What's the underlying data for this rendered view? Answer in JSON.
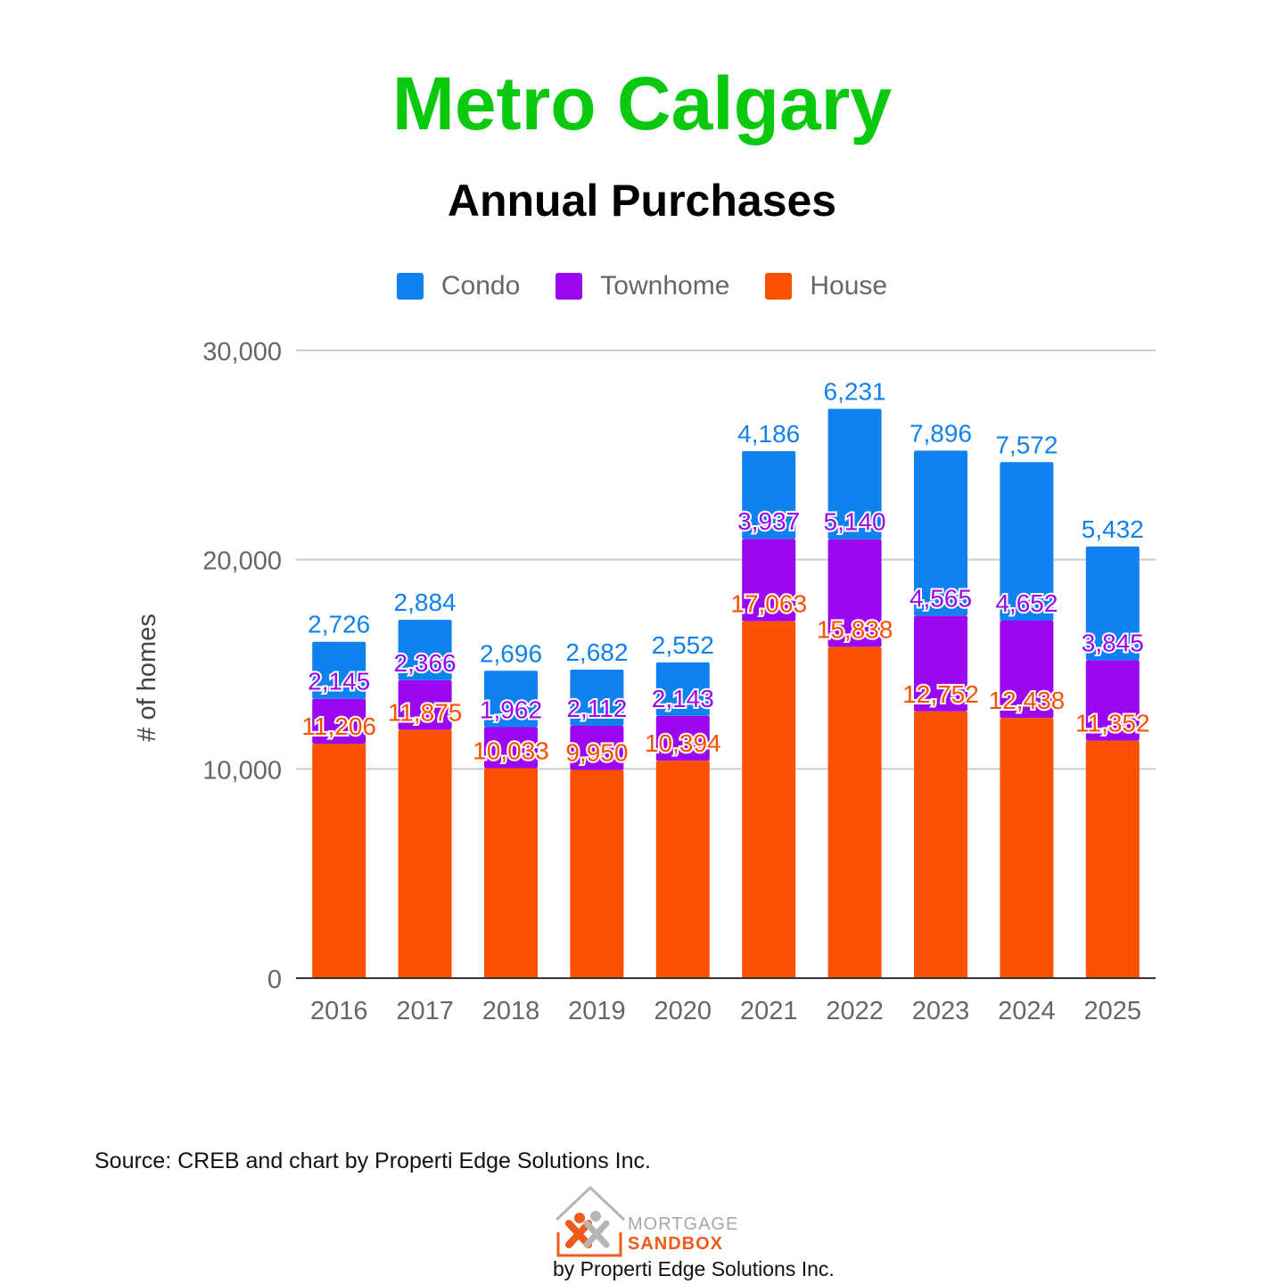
{
  "header": {
    "title": "Metro Calgary",
    "subtitle": "Annual Purchases"
  },
  "footer": {
    "source": "Source: CREB and chart by Properti Edge Solutions Inc.",
    "logo_word1": "MORTGAGE",
    "logo_word2": "SANDBOX",
    "logo_tagline": "by Properti Edge Solutions Inc."
  },
  "colors": {
    "title": "#0bc90f",
    "condo": "#0f82f0",
    "townhome": "#9b08f0",
    "house": "#fc5003"
  },
  "chart_data": {
    "type": "bar",
    "stacked": true,
    "categories": [
      "2016",
      "2017",
      "2018",
      "2019",
      "2020",
      "2021",
      "2022",
      "2023",
      "2024",
      "2025"
    ],
    "series": [
      {
        "name": "House",
        "color": "#fc5003",
        "values": [
          11206,
          11875,
          10033,
          9950,
          10394,
          17063,
          15838,
          12752,
          12438,
          11352
        ],
        "labels": [
          "11,206",
          "11,875",
          "10,033",
          "9,950",
          "10,394",
          "17,063",
          "15,838",
          "12,752",
          "12,438",
          "11,352"
        ]
      },
      {
        "name": "Townhome",
        "color": "#9b08f0",
        "values": [
          2145,
          2366,
          1962,
          2112,
          2143,
          3937,
          5140,
          4565,
          4652,
          3845
        ],
        "labels": [
          "2,145",
          "2,366",
          "1,962",
          "2,112",
          "2,143",
          "3,937",
          "5,140",
          "4,565",
          "4,652",
          "3,845"
        ]
      },
      {
        "name": "Condo",
        "color": "#0f82f0",
        "values": [
          2726,
          2884,
          2696,
          2682,
          2552,
          4186,
          6231,
          7896,
          7572,
          5432
        ],
        "labels": [
          "2,726",
          "2,884",
          "2,696",
          "2,682",
          "2,552",
          "4,186",
          "6,231",
          "7,896",
          "7,572",
          "5,432"
        ]
      }
    ],
    "legend_order": [
      "Condo",
      "Townhome",
      "House"
    ],
    "legend_position": "top",
    "ylabel": "# of homes",
    "ylim": [
      0,
      30000
    ],
    "yticks": [
      0,
      10000,
      20000,
      30000
    ],
    "ytick_labels": [
      "0",
      "10,000",
      "20,000",
      "30,000"
    ],
    "grid": true
  }
}
